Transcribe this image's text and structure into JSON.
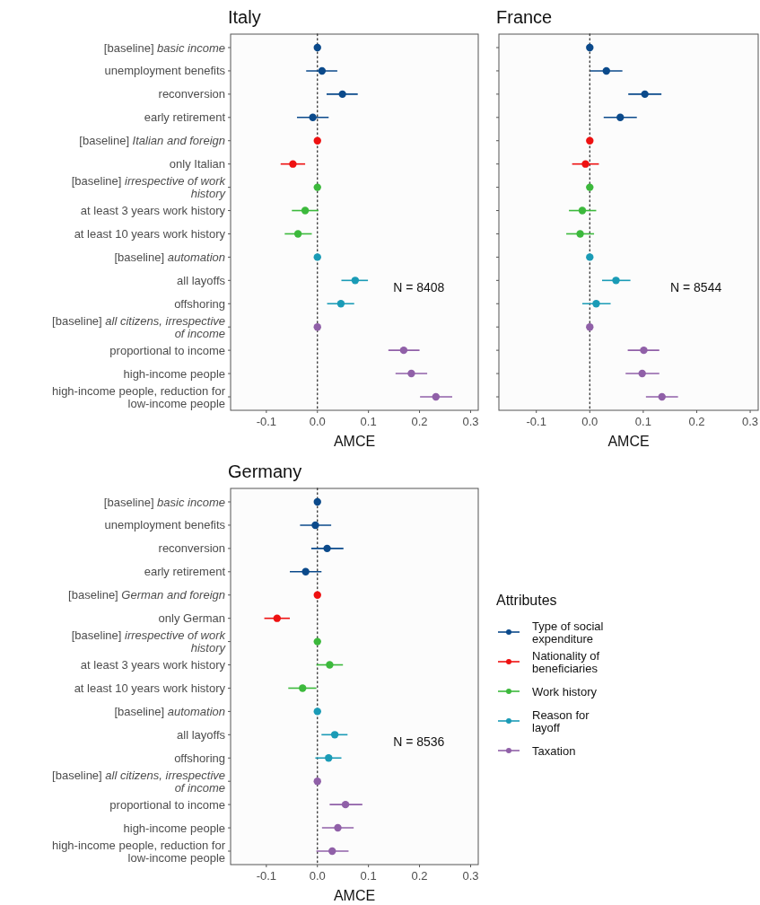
{
  "chart_data": [
    {
      "type": "scatter",
      "orientation": "horizontal",
      "title": "Italy",
      "xlabel": "AMCE",
      "marker": "circle",
      "xlim": [
        -0.17,
        0.315
      ],
      "xticks": [
        {
          "value": -0.1,
          "label": "-0.1"
        },
        {
          "value": 0,
          "label": "0.0"
        },
        {
          "value": 0.1,
          "label": "0.1"
        },
        {
          "value": 0.2,
          "label": "0.2"
        },
        {
          "value": 0.3,
          "label": "0.3"
        }
      ],
      "categories": [
        "[baseline] basic income",
        "unemployment benefits",
        "reconversion",
        "early retirement",
        "[baseline] Italian and foreign",
        "only Italian",
        "[baseline] irrespective of work history",
        "at least 3 years work history",
        "at least 10 years work history",
        "[baseline] automation",
        "all layoffs",
        "offshoring",
        "[baseline] all citizens, irrespective of income",
        "proportional to income",
        "high-income people",
        "high-income people, reduction for low-income people"
      ],
      "ref_lines": [
        {
          "axis": "x",
          "value": 0,
          "line_style": "dotted",
          "color": "#333333"
        }
      ],
      "annotations": [
        "N = 8408"
      ],
      "series": [
        {
          "color": "#0b4a8b",
          "values": [
            0,
            0.009,
            0.049,
            -0.009,
            null,
            null,
            null,
            null,
            null,
            null,
            null,
            null,
            null,
            null,
            null,
            null
          ],
          "errors": [
            null,
            [
              -0.022,
              0.039
            ],
            [
              0.018,
              0.079
            ],
            [
              -0.04,
              0.022
            ],
            null,
            null,
            null,
            null,
            null,
            null,
            null,
            null,
            null,
            null,
            null,
            null
          ]
        },
        {
          "color": "#ee1111",
          "values": [
            null,
            null,
            null,
            null,
            0,
            -0.048,
            null,
            null,
            null,
            null,
            null,
            null,
            null,
            null,
            null,
            null
          ],
          "errors": [
            null,
            null,
            null,
            null,
            null,
            [
              -0.072,
              -0.024
            ],
            null,
            null,
            null,
            null,
            null,
            null,
            null,
            null,
            null,
            null
          ]
        },
        {
          "color": "#3cb93c",
          "values": [
            null,
            null,
            null,
            null,
            null,
            null,
            0,
            -0.024,
            -0.038,
            null,
            null,
            null,
            null,
            null,
            null,
            null
          ],
          "errors": [
            null,
            null,
            null,
            null,
            null,
            null,
            null,
            [
              -0.05,
              0.002
            ],
            [
              -0.064,
              -0.011
            ],
            null,
            null,
            null,
            null,
            null,
            null,
            null
          ]
        },
        {
          "color": "#1a9bb6",
          "values": [
            null,
            null,
            null,
            null,
            null,
            null,
            null,
            null,
            null,
            0,
            0.074,
            0.046,
            null,
            null,
            null,
            null
          ],
          "errors": [
            null,
            null,
            null,
            null,
            null,
            null,
            null,
            null,
            null,
            null,
            [
              0.047,
              0.099
            ],
            [
              0.019,
              0.072
            ],
            null,
            null,
            null,
            null
          ]
        },
        {
          "color": "#9060a8",
          "values": [
            null,
            null,
            null,
            null,
            null,
            null,
            null,
            null,
            null,
            null,
            null,
            null,
            0,
            0.169,
            0.184,
            0.232
          ],
          "errors": [
            null,
            null,
            null,
            null,
            null,
            null,
            null,
            null,
            null,
            null,
            null,
            null,
            null,
            [
              0.139,
              0.2
            ],
            [
              0.153,
              0.215
            ],
            [
              0.201,
              0.264
            ]
          ]
        }
      ]
    },
    {
      "type": "scatter",
      "orientation": "horizontal",
      "title": "France",
      "xlabel": "AMCE",
      "marker": "circle",
      "tick_labels": "x",
      "xlim": [
        -0.17,
        0.315
      ],
      "xticks": [
        {
          "value": -0.1,
          "label": "-0.1"
        },
        {
          "value": 0,
          "label": "0.0"
        },
        {
          "value": 0.1,
          "label": "0.1"
        },
        {
          "value": 0.2,
          "label": "0.2"
        },
        {
          "value": 0.3,
          "label": "0.3"
        }
      ],
      "categories": [
        null,
        null,
        null,
        null,
        null,
        null,
        null,
        null,
        null,
        null,
        null,
        null,
        null,
        null,
        null,
        null
      ],
      "ref_lines": [
        {
          "axis": "x",
          "value": 0,
          "line_style": "dotted",
          "color": "#333333"
        }
      ],
      "annotations": [
        "N = 8544"
      ],
      "series": [
        {
          "color": "#0b4a8b",
          "values": [
            0,
            0.031,
            0.103,
            0.057,
            null,
            null,
            null,
            null,
            null,
            null,
            null,
            null,
            null,
            null,
            null,
            null
          ],
          "errors": [
            null,
            [
              0.001,
              0.061
            ],
            [
              0.072,
              0.134
            ],
            [
              0.026,
              0.088
            ],
            null,
            null,
            null,
            null,
            null,
            null,
            null,
            null,
            null,
            null,
            null,
            null
          ]
        },
        {
          "color": "#ee1111",
          "values": [
            null,
            null,
            null,
            null,
            0,
            -0.008,
            null,
            null,
            null,
            null,
            null,
            null,
            null,
            null,
            null,
            null
          ],
          "errors": [
            null,
            null,
            null,
            null,
            null,
            [
              -0.033,
              0.017
            ],
            null,
            null,
            null,
            null,
            null,
            null,
            null,
            null,
            null,
            null
          ]
        },
        {
          "color": "#3cb93c",
          "values": [
            null,
            null,
            null,
            null,
            null,
            null,
            0,
            -0.014,
            -0.018,
            null,
            null,
            null,
            null,
            null,
            null,
            null
          ],
          "errors": [
            null,
            null,
            null,
            null,
            null,
            null,
            null,
            [
              -0.039,
              0.012
            ],
            [
              -0.044,
              0.008
            ],
            null,
            null,
            null,
            null,
            null,
            null,
            null
          ]
        },
        {
          "color": "#1a9bb6",
          "values": [
            null,
            null,
            null,
            null,
            null,
            null,
            null,
            null,
            null,
            0,
            0.049,
            0.012,
            null,
            null,
            null,
            null
          ],
          "errors": [
            null,
            null,
            null,
            null,
            null,
            null,
            null,
            null,
            null,
            null,
            [
              0.023,
              0.076
            ],
            [
              -0.014,
              0.039
            ],
            null,
            null,
            null,
            null
          ]
        },
        {
          "color": "#9060a8",
          "values": [
            null,
            null,
            null,
            null,
            null,
            null,
            null,
            null,
            null,
            null,
            null,
            null,
            0,
            0.101,
            0.098,
            0.135
          ],
          "errors": [
            null,
            null,
            null,
            null,
            null,
            null,
            null,
            null,
            null,
            null,
            null,
            null,
            null,
            [
              0.071,
              0.13
            ],
            [
              0.067,
              0.13
            ],
            [
              0.105,
              0.165
            ]
          ]
        }
      ]
    },
    {
      "type": "scatter",
      "orientation": "horizontal",
      "title": "Germany",
      "xlabel": "AMCE",
      "marker": "circle",
      "legend": "right",
      "legend_title": "Attributes",
      "xlim": [
        -0.17,
        0.315
      ],
      "xticks": [
        {
          "value": -0.1,
          "label": "-0.1"
        },
        {
          "value": 0,
          "label": "0.0"
        },
        {
          "value": 0.1,
          "label": "0.1"
        },
        {
          "value": 0.2,
          "label": "0.2"
        },
        {
          "value": 0.3,
          "label": "0.3"
        }
      ],
      "categories": [
        "[baseline] basic income",
        "unemployment benefits",
        "reconversion",
        "early retirement",
        "[baseline] German and foreign",
        "only German",
        "[baseline] irrespective of work history",
        "at least 3 years work history",
        "at least 10 years work history",
        "[baseline] automation",
        "all layoffs",
        "offshoring",
        "[baseline] all citizens, irrespective of income",
        "proportional to income",
        "high-income people",
        "high-income people, reduction for low-income people"
      ],
      "ref_lines": [
        {
          "axis": "x",
          "value": 0,
          "line_style": "dotted",
          "color": "#333333"
        }
      ],
      "annotations": [
        "N = 8536"
      ],
      "series": [
        {
          "name": "Type of social expenditure",
          "color": "#0b4a8b",
          "values": [
            0,
            -0.004,
            0.019,
            -0.023,
            null,
            null,
            null,
            null,
            null,
            null,
            null,
            null,
            null,
            null,
            null,
            null
          ],
          "errors": [
            null,
            [
              -0.034,
              0.027
            ],
            [
              -0.012,
              0.051
            ],
            [
              -0.054,
              0.008
            ],
            null,
            null,
            null,
            null,
            null,
            null,
            null,
            null,
            null,
            null,
            null,
            null
          ]
        },
        {
          "name": "Nationality of beneficiaries",
          "color": "#ee1111",
          "values": [
            null,
            null,
            null,
            null,
            0,
            -0.079,
            null,
            null,
            null,
            null,
            null,
            null,
            null,
            null,
            null,
            null
          ],
          "errors": [
            null,
            null,
            null,
            null,
            null,
            [
              -0.104,
              -0.054
            ],
            null,
            null,
            null,
            null,
            null,
            null,
            null,
            null,
            null,
            null
          ]
        },
        {
          "name": "Work history",
          "color": "#3cb93c",
          "values": [
            null,
            null,
            null,
            null,
            null,
            null,
            0,
            0.024,
            -0.029,
            null,
            null,
            null,
            null,
            null,
            null,
            null
          ],
          "errors": [
            null,
            null,
            null,
            null,
            null,
            null,
            null,
            [
              -0.002,
              0.05
            ],
            [
              -0.057,
              -0.002
            ],
            null,
            null,
            null,
            null,
            null,
            null,
            null
          ]
        },
        {
          "name": "Reason for layoff",
          "color": "#1a9bb6",
          "values": [
            null,
            null,
            null,
            null,
            null,
            null,
            null,
            null,
            null,
            0,
            0.034,
            0.022,
            null,
            null,
            null,
            null
          ],
          "errors": [
            null,
            null,
            null,
            null,
            null,
            null,
            null,
            null,
            null,
            null,
            [
              0.008,
              0.059
            ],
            [
              -0.004,
              0.047
            ],
            null,
            null,
            null,
            null
          ]
        },
        {
          "name": "Taxation",
          "color": "#9060a8",
          "values": [
            null,
            null,
            null,
            null,
            null,
            null,
            null,
            null,
            null,
            null,
            null,
            null,
            0,
            0.055,
            0.04,
            0.029
          ],
          "errors": [
            null,
            null,
            null,
            null,
            null,
            null,
            null,
            null,
            null,
            null,
            null,
            null,
            null,
            [
              0.024,
              0.088
            ],
            [
              0.009,
              0.071
            ],
            [
              -0.002,
              0.061
            ]
          ]
        }
      ]
    }
  ]
}
